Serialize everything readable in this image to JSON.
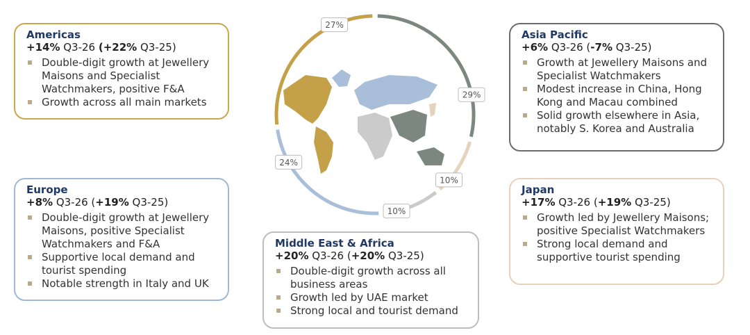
{
  "chart_data": {
    "type": "pie",
    "values": [
      29,
      10,
      10,
      24,
      27
    ],
    "value_labels": [
      "29%",
      "10%",
      "10%",
      "24%",
      "27%"
    ],
    "colors": [
      "#7d8781",
      "#e4d3bd",
      "#cbcbcb",
      "#a9bed8",
      "#c4a148"
    ]
  },
  "regions": [
    {
      "name": "Americas",
      "border": "#c9a84c",
      "headline": [
        {
          "text": "+14%",
          "bold": true
        },
        {
          "text": " Q3-26 ",
          "bold": false
        },
        {
          "text": "(+22%",
          "bold": true
        },
        {
          "text": " Q3-25)",
          "bold": false
        }
      ],
      "bullets": [
        "Double-digit growth at Jewellery Maisons and Specialist Watchmakers, positive F&A",
        "Growth across all main markets"
      ]
    },
    {
      "name": "Asia Pacific",
      "border": "#6b6b6b",
      "headline": [
        {
          "text": "+6%",
          "bold": true
        },
        {
          "text": " Q3-26 (",
          "bold": false
        },
        {
          "text": "-7%",
          "bold": true
        },
        {
          "text": " Q3-25)",
          "bold": false
        }
      ],
      "bullets": [
        "Growth at Jewellery Maisons and Specialist Watchmakers",
        "Modest increase in China, Hong Kong and Macau combined",
        "Solid growth elsewhere in Asia, notably S. Korea and Australia"
      ]
    },
    {
      "name": "Europe",
      "border": "#9fb8d6",
      "headline": [
        {
          "text": "+8%",
          "bold": true
        },
        {
          "text": " Q3-26 (",
          "bold": false
        },
        {
          "text": "+19%",
          "bold": true
        },
        {
          "text": " Q3-25)",
          "bold": false
        }
      ],
      "bullets": [
        "Double-digit growth at Jewellery Maisons, positive Specialist Watchmakers and F&A",
        "Supportive local demand and tourist spending",
        "Notable strength in Italy and UK"
      ]
    },
    {
      "name": "Japan",
      "border": "#e6d2bb",
      "headline": [
        {
          "text": "+17%",
          "bold": true
        },
        {
          "text": " Q3-26 (",
          "bold": false
        },
        {
          "text": "+19%",
          "bold": true
        },
        {
          "text": " Q3-25)",
          "bold": false
        }
      ],
      "bullets": [
        "Growth led by Jewellery Maisons; positive Specialist Watchmakers",
        "Strong local demand and supportive tourist spending"
      ]
    },
    {
      "name": "Middle East & Africa",
      "border": "#bdbdbd",
      "headline": [
        {
          "text": "+20%",
          "bold": true
        },
        {
          "text": " Q3-26 (",
          "bold": false
        },
        {
          "text": "+20%",
          "bold": true
        },
        {
          "text": " Q3-25)",
          "bold": false
        }
      ],
      "bullets": [
        "Double-digit growth across all business areas",
        "Growth led by UAE market",
        "Strong local and tourist demand"
      ]
    }
  ]
}
